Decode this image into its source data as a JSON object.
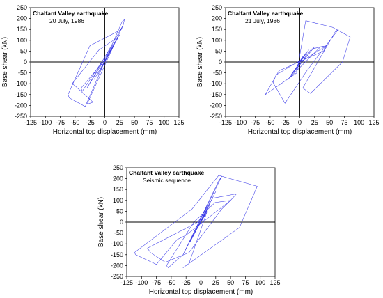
{
  "chart_data": [
    {
      "type": "line",
      "title": "Chalfant Valley earthquake",
      "subtitle": "20 July, 1986",
      "xlabel": "Horizontal top displacement (mm)",
      "ylabel": "Base shear (kN)",
      "xlim": [
        -125,
        125
      ],
      "ylim": [
        -250,
        250
      ],
      "xticks": [
        -125,
        -100,
        -75,
        -50,
        -25,
        0,
        25,
        50,
        75,
        100,
        125
      ],
      "yticks": [
        250,
        200,
        150,
        100,
        50,
        0,
        -50,
        -100,
        -150,
        -200,
        -250
      ],
      "grid": false,
      "legend": "none",
      "line_color": "#3a3ae8",
      "series": [
        {
          "x": [
            0,
            4,
            -3,
            6,
            -5,
            8,
            -8,
            10,
            -12,
            15,
            -18,
            22,
            -30,
            31,
            33,
            29,
            -33,
            -60,
            -62,
            -25,
            28,
            30,
            -30,
            -20,
            -50,
            -55,
            -10,
            20,
            25,
            -38,
            -40,
            5,
            0
          ],
          "y": [
            0,
            20,
            -15,
            30,
            -25,
            40,
            -40,
            55,
            -60,
            75,
            -80,
            110,
            -120,
            170,
            195,
            185,
            -205,
            -165,
            -150,
            75,
            150,
            165,
            -195,
            -185,
            -110,
            -100,
            55,
            110,
            125,
            -135,
            -120,
            25,
            0
          ]
        }
      ]
    },
    {
      "type": "line",
      "title": "Chalfant Valley earthquake",
      "subtitle": "21 July, 1986",
      "xlabel": "Horizontal top displacement (mm)",
      "ylabel": "Base shear (kN)",
      "xlim": [
        -125,
        125
      ],
      "ylim": [
        -250,
        250
      ],
      "xticks": [
        -125,
        -100,
        -75,
        -50,
        -25,
        0,
        25,
        50,
        75,
        100,
        125
      ],
      "yticks": [
        250,
        200,
        150,
        100,
        50,
        0,
        -50,
        -100,
        -150,
        -200,
        -250
      ],
      "grid": false,
      "legend": "none",
      "line_color": "#3a3ae8",
      "series": [
        {
          "x": [
            0,
            5,
            -5,
            10,
            -8,
            15,
            -15,
            25,
            -20,
            35,
            45,
            40,
            -35,
            -55,
            -58,
            -5,
            10,
            55,
            85,
            72,
            18,
            5,
            60,
            65,
            12,
            -25,
            -45,
            -40,
            8,
            20,
            45,
            10,
            0
          ],
          "y": [
            0,
            25,
            -20,
            40,
            -35,
            55,
            -60,
            70,
            -80,
            70,
            75,
            50,
            -40,
            -135,
            -150,
            -50,
            190,
            160,
            115,
            0,
            -145,
            -120,
            140,
            150,
            -40,
            -190,
            -95,
            -60,
            20,
            60,
            75,
            15,
            0
          ]
        }
      ]
    },
    {
      "type": "line",
      "title": "Chalfant Valley earthquake",
      "subtitle": "Seismic sequence",
      "xlabel": "Horizontal top displacement (mm)",
      "ylabel": "Base shear (kN)",
      "xlim": [
        -125,
        125
      ],
      "ylim": [
        -250,
        250
      ],
      "xticks": [
        -125,
        -100,
        -75,
        -50,
        -25,
        0,
        25,
        50,
        75,
        100,
        125
      ],
      "yticks": [
        250,
        200,
        150,
        100,
        50,
        0,
        -50,
        -100,
        -150,
        -200,
        -250
      ],
      "grid": false,
      "legend": "none",
      "line_color": "#3a3ae8",
      "series": [
        {
          "x": [
            0,
            5,
            -5,
            10,
            -10,
            15,
            -18,
            25,
            -30,
            35,
            30,
            -30,
            -55,
            -58,
            -12,
            24,
            50,
            35,
            -20,
            -60,
            -85,
            -90,
            -5,
            20,
            60,
            50,
            -25,
            -40,
            -75,
            -110,
            -112,
            -15,
            30,
            95,
            65,
            -30,
            -20,
            10,
            0
          ],
          "y": [
            0,
            30,
            -25,
            50,
            -45,
            80,
            -90,
            140,
            -150,
            210,
            190,
            -150,
            -210,
            -200,
            0,
            90,
            100,
            60,
            -140,
            -185,
            -140,
            -120,
            0,
            110,
            130,
            100,
            -60,
            -80,
            -195,
            -150,
            -140,
            60,
            215,
            165,
            -25,
            -210,
            -190,
            45,
            0
          ]
        }
      ]
    }
  ]
}
